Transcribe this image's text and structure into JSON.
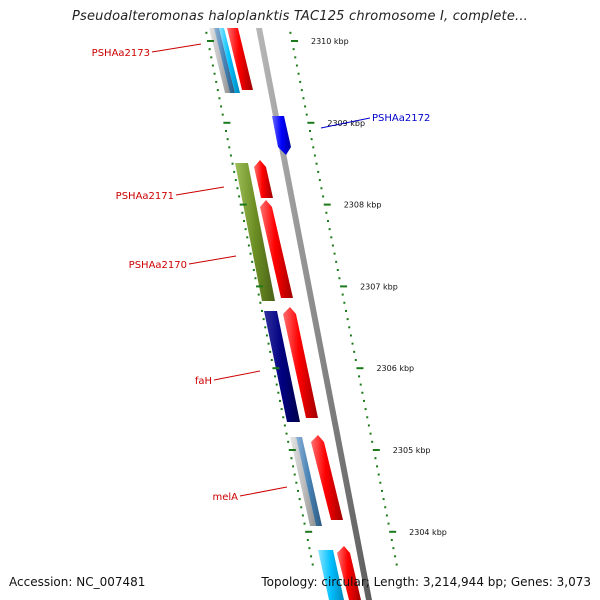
{
  "title": "Pseudoalteromonas haloplanktis TAC125 chromosome I, complete...",
  "footer": {
    "accession": "Accession: NC_007481",
    "summary": "Topology: circular; Length: 3,214,944 bp; Genes: 3,073"
  },
  "ruler": [
    {
      "label": "2310 kbp",
      "kbp": 2310
    },
    {
      "label": "2309 kbp",
      "kbp": 2309
    },
    {
      "label": "2308 kbp",
      "kbp": 2308
    },
    {
      "label": "2307 kbp",
      "kbp": 2307
    },
    {
      "label": "2306 kbp",
      "kbp": 2306
    },
    {
      "label": "2305 kbp",
      "kbp": 2305
    },
    {
      "label": "2304 kbp",
      "kbp": 2304
    }
  ],
  "gene_labels": [
    {
      "label": "PSHAa2173",
      "color": "#cc0000"
    },
    {
      "label": "PSHAa2172",
      "color": "#0000cc"
    },
    {
      "label": "PSHAa2171",
      "color": "#cc0000"
    },
    {
      "label": "PSHAa2170",
      "color": "#cc0000"
    },
    {
      "label": "faH",
      "color": "#cc0000"
    },
    {
      "label": "melA",
      "color": "#cc0000"
    }
  ],
  "colors": {
    "backbone": "#8c8c8c",
    "forward_gene": "#ff0000",
    "reverse_gene": "#0000ff",
    "tick": "#1a7a1a",
    "olive": "#6b8e23",
    "navy": "#000080",
    "cyan": "#00bfff",
    "steel": "#4682b4",
    "silver": "#c0c0c0"
  }
}
